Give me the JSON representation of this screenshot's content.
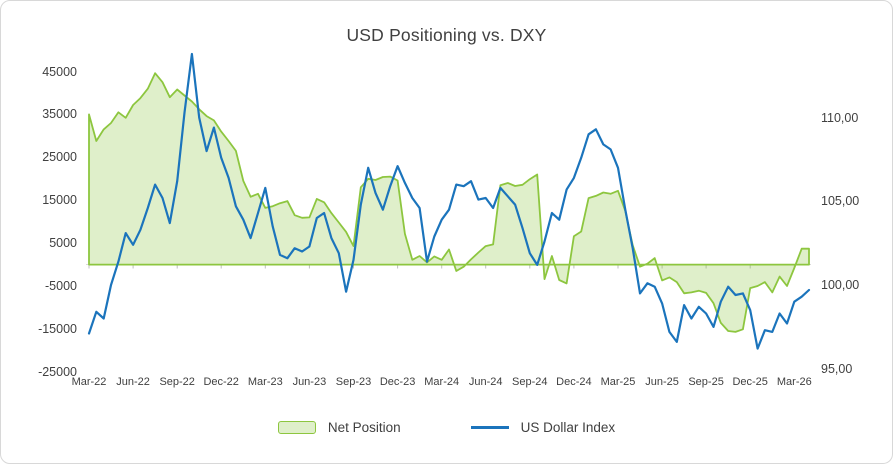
{
  "title": "USD Positioning vs. DXY",
  "colors": {
    "net_border": "#8dc63f",
    "net_fill": "rgba(141,198,63,0.28)",
    "dxy_line": "#1b74bc",
    "text": "#404040",
    "axis_line": "#d9d9d9",
    "tick_mark": "#bfbfbf"
  },
  "chart_data": {
    "type": "area",
    "subtype": "combo area (left axis) + line (right axis)",
    "title": "USD Positioning vs. DXY",
    "x_start": "Mar-22",
    "x_end": "Mar-26",
    "sampling": "biweekly (0.5 month per point, 99 points)",
    "x_labels": [
      "Mar-22",
      "Jun-22",
      "Sep-22",
      "Dec-22",
      "Mar-23",
      "Jun-23",
      "Sep-23",
      "Dec-23",
      "Mar-24",
      "Jun-24",
      "Sep-24",
      "Dec-24",
      "Mar-25",
      "Jun-25",
      "Sep-25",
      "Dec-25",
      "Mar-26"
    ],
    "left_axis": {
      "ticks": [
        45000,
        35000,
        25000,
        15000,
        5000,
        -5000,
        -15000,
        -25000
      ],
      "max": 45000,
      "min": -25000,
      "series": "Net Position"
    },
    "right_axis": {
      "tick_labels": [
        "110,00",
        "105,00",
        "100,00",
        "95,00"
      ],
      "tick_values": [
        110,
        105,
        100,
        95
      ],
      "max": 110,
      "min": 95,
      "series": "US Dollar Index"
    },
    "grid": "off",
    "legend_position": "bottom",
    "series": [
      {
        "name": "Net Position",
        "type": "area",
        "axis": "left",
        "values": [
          35000,
          28800,
          31500,
          33000,
          35500,
          34200,
          37200,
          38800,
          41000,
          44600,
          42500,
          39000,
          40800,
          39400,
          38000,
          36200,
          34600,
          33600,
          31000,
          28800,
          26500,
          19500,
          15800,
          16500,
          13200,
          13600,
          14300,
          14800,
          11500,
          10900,
          11000,
          15300,
          14500,
          12000,
          9800,
          7600,
          4300,
          18000,
          20000,
          19700,
          20400,
          20500,
          19600,
          7200,
          1100,
          2000,
          500,
          1900,
          1100,
          3500,
          -1500,
          -500,
          1200,
          2800,
          4300,
          4700,
          18500,
          19000,
          18300,
          18600,
          19900,
          21000,
          -3400,
          2000,
          -3600,
          -4400,
          6600,
          7700,
          15500,
          16000,
          16800,
          16500,
          17200,
          12500,
          4500,
          -500,
          200,
          1500,
          -3700,
          -3000,
          -4100,
          -6700,
          -6500,
          -6100,
          -6600,
          -9000,
          -13600,
          -15500,
          -15700,
          -15100,
          -5500,
          -5000,
          -4100,
          -6500,
          -2800,
          -5000,
          -800,
          3700,
          3700
        ]
      },
      {
        "name": "US Dollar Index",
        "type": "line",
        "axis": "right",
        "values": [
          97.1,
          98.4,
          98.0,
          100.0,
          101.4,
          103.1,
          102.4,
          103.3,
          104.6,
          106.0,
          105.2,
          103.7,
          106.2,
          110.3,
          113.8,
          110.0,
          108.0,
          109.4,
          107.6,
          106.4,
          104.7,
          103.9,
          102.8,
          104.3,
          105.8,
          103.5,
          101.8,
          101.6,
          102.2,
          102.0,
          102.3,
          104.0,
          104.3,
          102.8,
          101.9,
          99.6,
          101.5,
          104.8,
          107.0,
          105.5,
          104.5,
          105.9,
          107.1,
          106.1,
          105.2,
          104.6,
          101.4,
          102.9,
          103.9,
          104.5,
          106.0,
          105.9,
          106.2,
          105.1,
          105.2,
          104.6,
          105.8,
          105.3,
          104.8,
          103.4,
          101.9,
          101.2,
          102.6,
          104.3,
          103.9,
          105.7,
          106.4,
          107.6,
          109.0,
          109.3,
          108.4,
          108.1,
          107.0,
          104.5,
          102.2,
          99.5,
          100.1,
          99.9,
          98.9,
          97.2,
          96.6,
          98.8,
          98.0,
          98.7,
          98.3,
          97.5,
          99.0,
          99.9,
          99.4,
          99.5,
          98.5,
          96.2,
          97.3,
          97.2,
          98.3,
          97.7,
          99.0,
          99.3,
          99.7
        ]
      }
    ]
  }
}
